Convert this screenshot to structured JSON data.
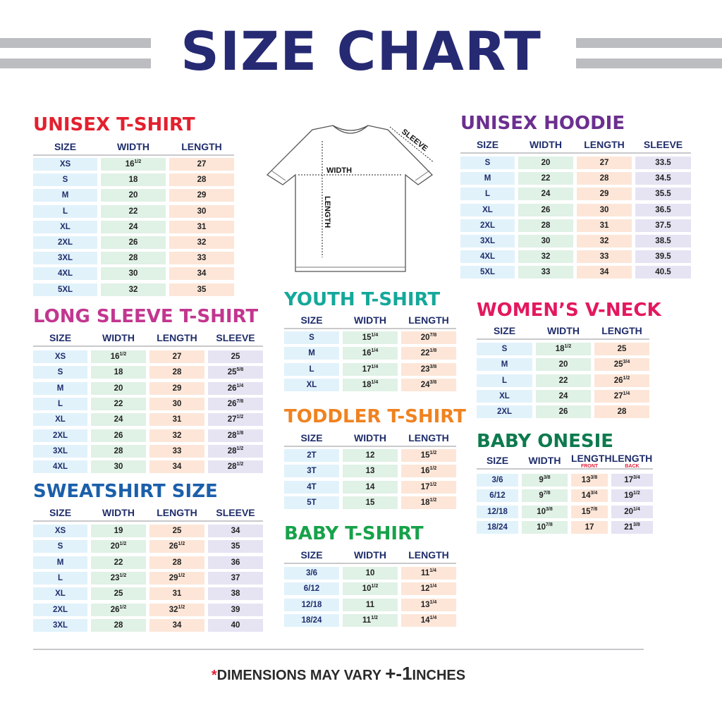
{
  "title": "SIZE CHART",
  "colors": {
    "title": "#262a73",
    "header": "#1f2d6b",
    "size_cell": "#e1f2fb",
    "width_cell": "#e0f1e6",
    "length_cell": "#fde6d8",
    "sleeve_cell": "#e6e3f3",
    "accent_red": "#e0203a"
  },
  "diagram": {
    "width_label": "WIDTH",
    "length_label": "LENGTH",
    "sleeve_label": "SLEEVE"
  },
  "tables": [
    {
      "id": "unisex-tshirt",
      "title": "UNISEX T-SHIRT",
      "color": "#e3202e",
      "headers": [
        {
          "label": "SIZE"
        },
        {
          "label": "WIDTH"
        },
        {
          "label": "LENGTH"
        }
      ],
      "rows": [
        [
          "XS",
          "16 1/2",
          "27"
        ],
        [
          "S",
          "18",
          "28"
        ],
        [
          "M",
          "20",
          "29"
        ],
        [
          "L",
          "22",
          "30"
        ],
        [
          "XL",
          "24",
          "31"
        ],
        [
          "2XL",
          "26",
          "32"
        ],
        [
          "3XL",
          "28",
          "33"
        ],
        [
          "4XL",
          "30",
          "34"
        ],
        [
          "5XL",
          "32",
          "35"
        ]
      ]
    },
    {
      "id": "long-sleeve-tshirt",
      "title": "LONG SLEEVE T-SHIRT",
      "color": "#c2368f",
      "headers": [
        {
          "label": "SIZE"
        },
        {
          "label": "WIDTH"
        },
        {
          "label": "LENGTH"
        },
        {
          "label": "SLEEVE"
        }
      ],
      "rows": [
        [
          "XS",
          "16 1/2",
          "27",
          "25"
        ],
        [
          "S",
          "18",
          "28",
          "25 5/8"
        ],
        [
          "M",
          "20",
          "29",
          "26 1/4"
        ],
        [
          "L",
          "22",
          "30",
          "26 7/8"
        ],
        [
          "XL",
          "24",
          "31",
          "27 1/2"
        ],
        [
          "2XL",
          "26",
          "32",
          "28 1/8"
        ],
        [
          "3XL",
          "28",
          "33",
          "28 1/2"
        ],
        [
          "4XL",
          "30",
          "34",
          "28 1/2"
        ]
      ]
    },
    {
      "id": "sweatshirt",
      "title": "SWEATSHIRT SIZE",
      "color": "#1b5faa",
      "headers": [
        {
          "label": "SIZE"
        },
        {
          "label": "WIDTH"
        },
        {
          "label": "LENGTH"
        },
        {
          "label": "SLEEVE"
        }
      ],
      "rows": [
        [
          "XS",
          "19",
          "25",
          "34"
        ],
        [
          "S",
          "20 1/2",
          "26 1/2",
          "35"
        ],
        [
          "M",
          "22",
          "28",
          "36"
        ],
        [
          "L",
          "23 1/2",
          "29 1/2",
          "37"
        ],
        [
          "XL",
          "25",
          "31",
          "38"
        ],
        [
          "2XL",
          "26 1/2",
          "32 1/2",
          "39"
        ],
        [
          "3XL",
          "28",
          "34",
          "40"
        ]
      ]
    },
    {
      "id": "unisex-hoodie",
      "title": "UNISEX HOODIE",
      "color": "#6b2f8f",
      "headers": [
        {
          "label": "SIZE"
        },
        {
          "label": "WIDTH"
        },
        {
          "label": "LENGTH"
        },
        {
          "label": "SLEEVE"
        }
      ],
      "rows": [
        [
          "S",
          "20",
          "27",
          "33.5"
        ],
        [
          "M",
          "22",
          "28",
          "34.5"
        ],
        [
          "L",
          "24",
          "29",
          "35.5"
        ],
        [
          "XL",
          "26",
          "30",
          "36.5"
        ],
        [
          "2XL",
          "28",
          "31",
          "37.5"
        ],
        [
          "3XL",
          "30",
          "32",
          "38.5"
        ],
        [
          "4XL",
          "32",
          "33",
          "39.5"
        ],
        [
          "5XL",
          "33",
          "34",
          "40.5"
        ]
      ]
    },
    {
      "id": "youth-tshirt",
      "title": "YOUTH T-SHIRT",
      "color": "#14a89a",
      "headers": [
        {
          "label": "SIZE"
        },
        {
          "label": "WIDTH"
        },
        {
          "label": "LENGTH"
        }
      ],
      "rows": [
        [
          "S",
          "15 1/4",
          "20 7/8"
        ],
        [
          "M",
          "16 1/4",
          "22 1/8"
        ],
        [
          "L",
          "17 1/4",
          "23 3/8"
        ],
        [
          "XL",
          "18 1/4",
          "24 3/8"
        ]
      ]
    },
    {
      "id": "toddler-tshirt",
      "title": "TODDLER T-SHIRT",
      "color": "#f08220",
      "headers": [
        {
          "label": "SIZE"
        },
        {
          "label": "WIDTH"
        },
        {
          "label": "LENGTH"
        }
      ],
      "rows": [
        [
          "2T",
          "12",
          "15 1/2"
        ],
        [
          "3T",
          "13",
          "16 1/2"
        ],
        [
          "4T",
          "14",
          "17 1/2"
        ],
        [
          "5T",
          "15",
          "18 1/2"
        ]
      ]
    },
    {
      "id": "baby-tshirt",
      "title": "BABY T-SHIRT",
      "color": "#17a24a",
      "headers": [
        {
          "label": "SIZE"
        },
        {
          "label": "WIDTH"
        },
        {
          "label": "LENGTH"
        }
      ],
      "rows": [
        [
          "3/6",
          "10",
          "11 1/4"
        ],
        [
          "6/12",
          "10 1/2",
          "12 1/4"
        ],
        [
          "12/18",
          "11",
          "13 1/4"
        ],
        [
          "18/24",
          "11 1/2",
          "14 1/4"
        ]
      ]
    },
    {
      "id": "womens-vneck",
      "title": "WOMEN’S V-NECK",
      "color": "#e3185e",
      "headers": [
        {
          "label": "SIZE"
        },
        {
          "label": "WIDTH"
        },
        {
          "label": "LENGTH"
        }
      ],
      "rows": [
        [
          "S",
          "18 1/2",
          "25"
        ],
        [
          "M",
          "20",
          "25 3/4"
        ],
        [
          "L",
          "22",
          "26 1/2"
        ],
        [
          "XL",
          "24",
          "27 1/4"
        ],
        [
          "2XL",
          "26",
          "28"
        ]
      ]
    },
    {
      "id": "baby-onesie",
      "title": "BABY ONESIE",
      "color": "#0d7a4e",
      "headers": [
        {
          "label": "SIZE"
        },
        {
          "label": "WIDTH"
        },
        {
          "label": "LENGTH",
          "sub": "FRONT"
        },
        {
          "label": "LENGTH",
          "sub": "BACK"
        }
      ],
      "rows": [
        [
          "3/6",
          "9 3/8",
          "13 3/8",
          "17 3/4"
        ],
        [
          "6/12",
          "9 7/8",
          "14 3/4",
          "19 1/2"
        ],
        [
          "12/18",
          "10 3/8",
          "15 7/8",
          "20 1/4"
        ],
        [
          "18/24",
          "10 7/8",
          "17",
          "21 3/8"
        ]
      ]
    }
  ],
  "footer": {
    "star": "*",
    "text": "DIMENSIONS MAY VARY ",
    "plusminus": "+-1",
    "unit": "INCHES"
  }
}
